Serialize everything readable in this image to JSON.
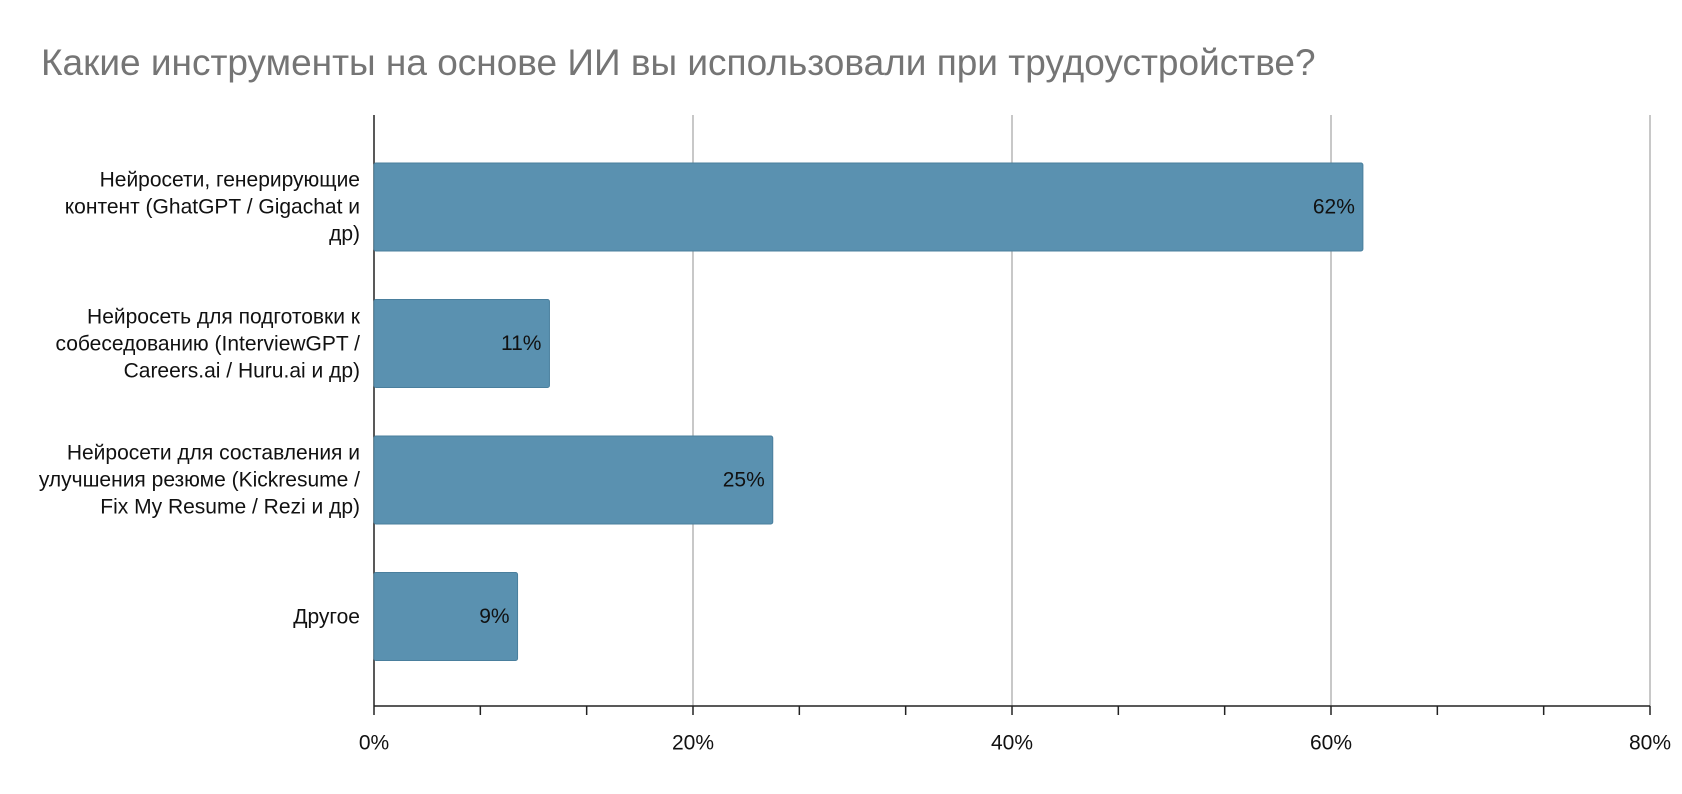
{
  "chart_data": {
    "type": "bar",
    "orientation": "horizontal",
    "title": "Какие инструменты на основе ИИ вы использовали при трудоустройстве?",
    "categories": [
      "Нейросети, генерирующие контент (GhatGPT / Gigachat и др)",
      "Нейросеть для подготовки к собеседованию (InterviewGPT / Careers.ai / Huru.ai и др)",
      "Нейросети для составления и улучшения резюме (Kickresume / Fix My Resume / Rezi и др)",
      "Другое"
    ],
    "values": [
      62,
      11,
      25,
      9
    ],
    "value_labels": [
      "62%",
      "11%",
      "25%",
      "9%"
    ],
    "color": "#5a91b0",
    "xlim": [
      0,
      80
    ],
    "xticks": [
      {
        "value": 0,
        "label": "0%"
      },
      {
        "value": 20,
        "label": "20%"
      },
      {
        "value": 40,
        "label": "40%"
      },
      {
        "value": 60,
        "label": "60%"
      },
      {
        "value": 80,
        "label": "80%"
      }
    ],
    "grid": true
  }
}
